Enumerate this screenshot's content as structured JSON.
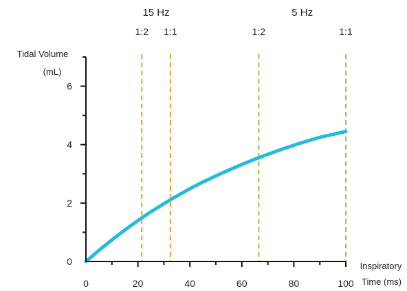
{
  "chart_data": {
    "type": "line",
    "ylabel_line1": "Tidal Volume",
    "ylabel_line2": "(mL)",
    "xlabel_line1": "Inspiratory",
    "xlabel_line2": "Time (ms)",
    "xlim": [
      0,
      100
    ],
    "ylim": [
      0,
      7
    ],
    "xticks": [
      0,
      20,
      40,
      60,
      80,
      100
    ],
    "yticks": [
      0,
      2,
      4,
      6
    ],
    "grid": false,
    "series": [
      {
        "color": "#25bcd9",
        "x": [
          0,
          5,
          10,
          15,
          20,
          25,
          30,
          35,
          40,
          45,
          50,
          55,
          60,
          65,
          70,
          75,
          80,
          85,
          90,
          95,
          100
        ],
        "y": [
          0,
          0.38,
          0.74,
          1.08,
          1.4,
          1.7,
          1.98,
          2.24,
          2.49,
          2.72,
          2.93,
          3.13,
          3.32,
          3.5,
          3.67,
          3.83,
          3.98,
          4.12,
          4.25,
          4.35,
          4.45
        ]
      }
    ],
    "reference_lines": [
      {
        "x": 21.5,
        "color": "#f29b2a",
        "ratio": "1:2"
      },
      {
        "x": 32.5,
        "color": "#f29b2a",
        "ratio": "1:1"
      },
      {
        "x": 66.5,
        "color": "#a3be4a",
        "ratio": "1:2"
      },
      {
        "x": 100,
        "color": "#a3be4a",
        "ratio": "1:1"
      }
    ],
    "frequency_groups": [
      {
        "label": "15 Hz",
        "x_center": 27
      },
      {
        "label": "5 Hz",
        "x_center": 83.25
      }
    ]
  }
}
